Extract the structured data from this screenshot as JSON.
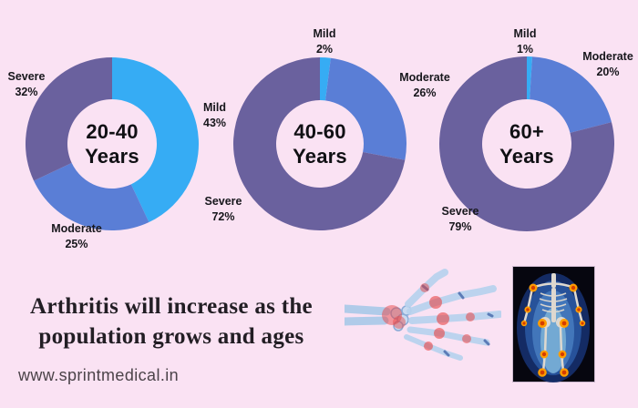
{
  "page": {
    "background_color": "#FAE2F3"
  },
  "title_lines": [
    "Arthritis will increase as the",
    "population grows and ages"
  ],
  "website": "www.sprintmedical.in",
  "legend_colors": {
    "Mild": "#36ACF4",
    "Moderate": "#5A7ED6",
    "Severe": "#6A619E"
  },
  "chart_data": [
    {
      "type": "pie",
      "subtype": "donut",
      "title": "20-40 Years",
      "center_label_lines": [
        "20-40",
        "Years"
      ],
      "categories": [
        "Mild",
        "Moderate",
        "Severe"
      ],
      "values": [
        43,
        25,
        32
      ],
      "value_labels": [
        "43%",
        "25%",
        "32%"
      ],
      "unit": "%",
      "colors": [
        "#36ACF4",
        "#5A7ED6",
        "#6A619E"
      ],
      "start_angle_deg": 0,
      "direction": "clockwise",
      "legend_position": "around"
    },
    {
      "type": "pie",
      "subtype": "donut",
      "title": "40-60 Years",
      "center_label_lines": [
        "40-60",
        "Years"
      ],
      "categories": [
        "Mild",
        "Moderate",
        "Severe"
      ],
      "values": [
        2,
        26,
        72
      ],
      "value_labels": [
        "2%",
        "26%",
        "72%"
      ],
      "unit": "%",
      "colors": [
        "#36ACF4",
        "#5A7ED6",
        "#6A619E"
      ],
      "start_angle_deg": 0,
      "direction": "clockwise",
      "legend_position": "around"
    },
    {
      "type": "pie",
      "subtype": "donut",
      "title": "60+ Years",
      "center_label_lines": [
        "60+",
        "Years"
      ],
      "categories": [
        "Mild",
        "Moderate",
        "Severe"
      ],
      "values": [
        1,
        20,
        79
      ],
      "value_labels": [
        "1%",
        "20%",
        "79%"
      ],
      "unit": "%",
      "colors": [
        "#36ACF4",
        "#5A7ED6",
        "#6A619E"
      ],
      "start_angle_deg": 0,
      "direction": "clockwise",
      "legend_position": "around"
    }
  ],
  "illustrations": [
    {
      "name": "hand-xray-illustration"
    },
    {
      "name": "skeleton-scan-illustration"
    }
  ]
}
